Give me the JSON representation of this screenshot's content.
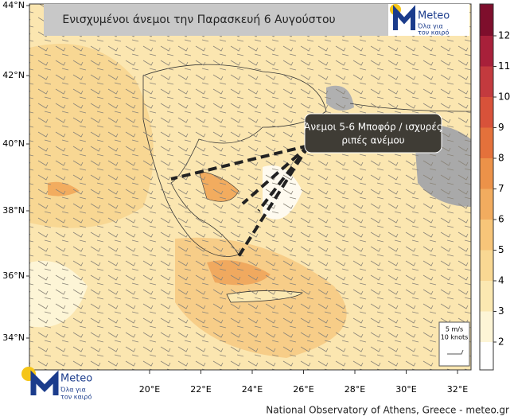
{
  "title": "Ενισχυμένοι άνεμοι την Παρασκευή 6 Αυγούστου",
  "annotation": [
    "Άνεμοι 5-6 Μποφόρ / ισχυρές",
    "ριπές ανέμου"
  ],
  "latitude_labels": [
    "44°N",
    "42°N",
    "40°N",
    "38°N",
    "36°N",
    "34°N"
  ],
  "longitude_labels": [
    "20°E",
    "22°E",
    "24°E",
    "26°E",
    "28°E",
    "30°E",
    "32°E"
  ],
  "colorbar": {
    "levels": [
      2,
      3,
      4,
      5,
      6,
      7,
      8,
      9,
      10,
      11,
      12
    ],
    "colors": [
      "#ffffff",
      "#fdf5d6",
      "#fbe8b1",
      "#f9d893",
      "#f7c579",
      "#f2ac5f",
      "#ec9249",
      "#e4713b",
      "#d8523a",
      "#c33a3e",
      "#a8203a",
      "#7e0e2c"
    ]
  },
  "wind_legend": [
    "5 m/s",
    "10 knots"
  ],
  "logo": {
    "name": "Meteo",
    "tagline": [
      "Όλα για",
      "τον καιρό"
    ]
  },
  "footer": "National Observatory of Athens, Greece - meteo.gr"
}
